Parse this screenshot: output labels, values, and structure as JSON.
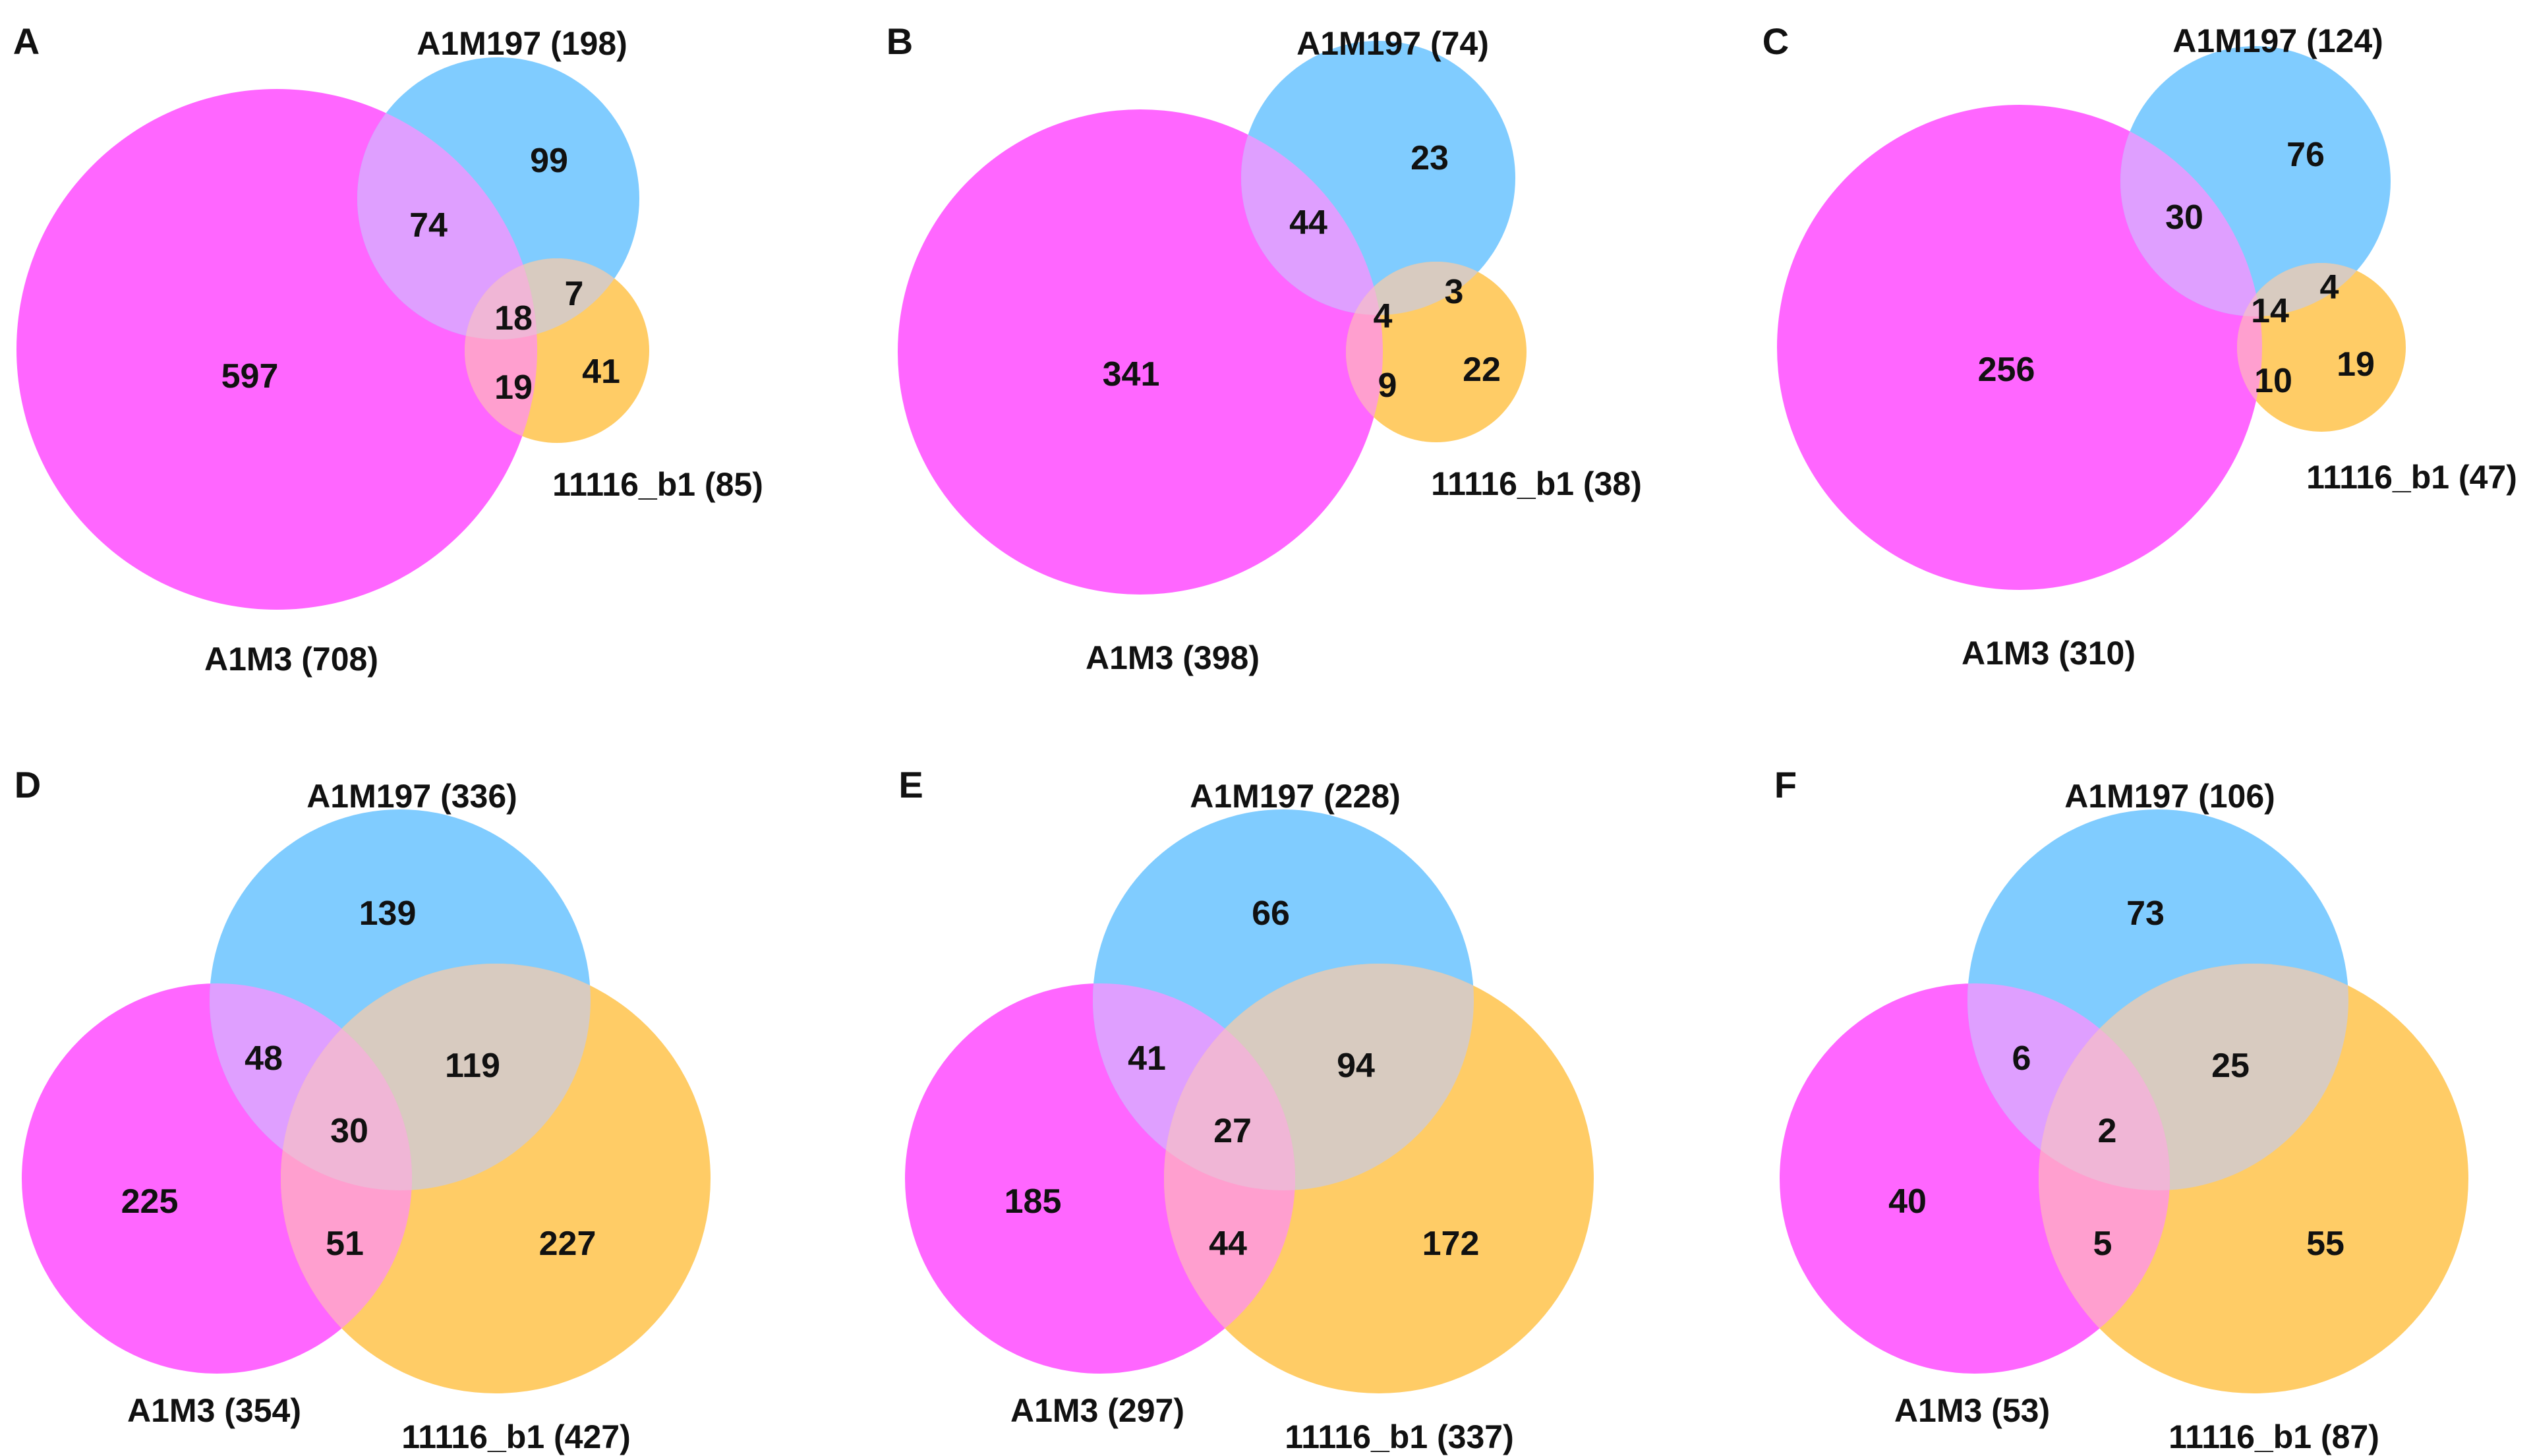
{
  "chart_data": [
    {
      "type": "venn",
      "panel": "A",
      "sets": [
        "A1M3 (708)",
        "A1M197 (198)",
        "11116_b1 (85)"
      ],
      "regions": {
        "a_only": "597",
        "b_only": "99",
        "c_only": "41",
        "ab": "74",
        "bc": "7",
        "ac": "19",
        "abc": "18"
      }
    },
    {
      "type": "venn",
      "panel": "B",
      "sets": [
        "A1M3 (398)",
        "A1M197 (74)",
        "11116_b1 (38)"
      ],
      "regions": {
        "a_only": "341",
        "b_only": "23",
        "c_only": "22",
        "ab": "44",
        "bc": "3",
        "ac": "9",
        "abc": "4"
      }
    },
    {
      "type": "venn",
      "panel": "C",
      "sets": [
        "A1M3 (310)",
        "A1M197 (124)",
        "11116_b1 (47)"
      ],
      "regions": {
        "a_only": "256",
        "b_only": "76",
        "c_only": "19",
        "ab": "30",
        "bc": "4",
        "ac": "10",
        "abc": "14"
      }
    },
    {
      "type": "venn",
      "panel": "D",
      "sets": [
        "A1M3 (354)",
        "A1M197 (336)",
        "11116_b1 (427)"
      ],
      "regions": {
        "a_only": "225",
        "b_only": "139",
        "c_only": "227",
        "ab": "48",
        "bc": "119",
        "ac": "51",
        "abc": "30"
      }
    },
    {
      "type": "venn",
      "panel": "E",
      "sets": [
        "A1M3 (297)",
        "A1M197 (228)",
        "11116_b1 (337)"
      ],
      "regions": {
        "a_only": "185",
        "b_only": "66",
        "c_only": "172",
        "ab": "41",
        "bc": "94",
        "ac": "44",
        "abc": "27"
      }
    },
    {
      "type": "venn",
      "panel": "F",
      "sets": [
        "A1M3 (53)",
        "A1M197 (106)",
        "11116_b1 (87)"
      ],
      "regions": {
        "a_only": "40",
        "b_only": "73",
        "c_only": "55",
        "ab": "6",
        "bc": "25",
        "ac": "5",
        "abc": "2"
      }
    }
  ],
  "colors": {
    "a": "#ff66ff",
    "b": "#80ccff",
    "c": "#ffcc66",
    "ab": "#df9fff",
    "bc": "#d8cbc0",
    "ac": "#ff9fcf",
    "abc": "#f0b6d6"
  }
}
